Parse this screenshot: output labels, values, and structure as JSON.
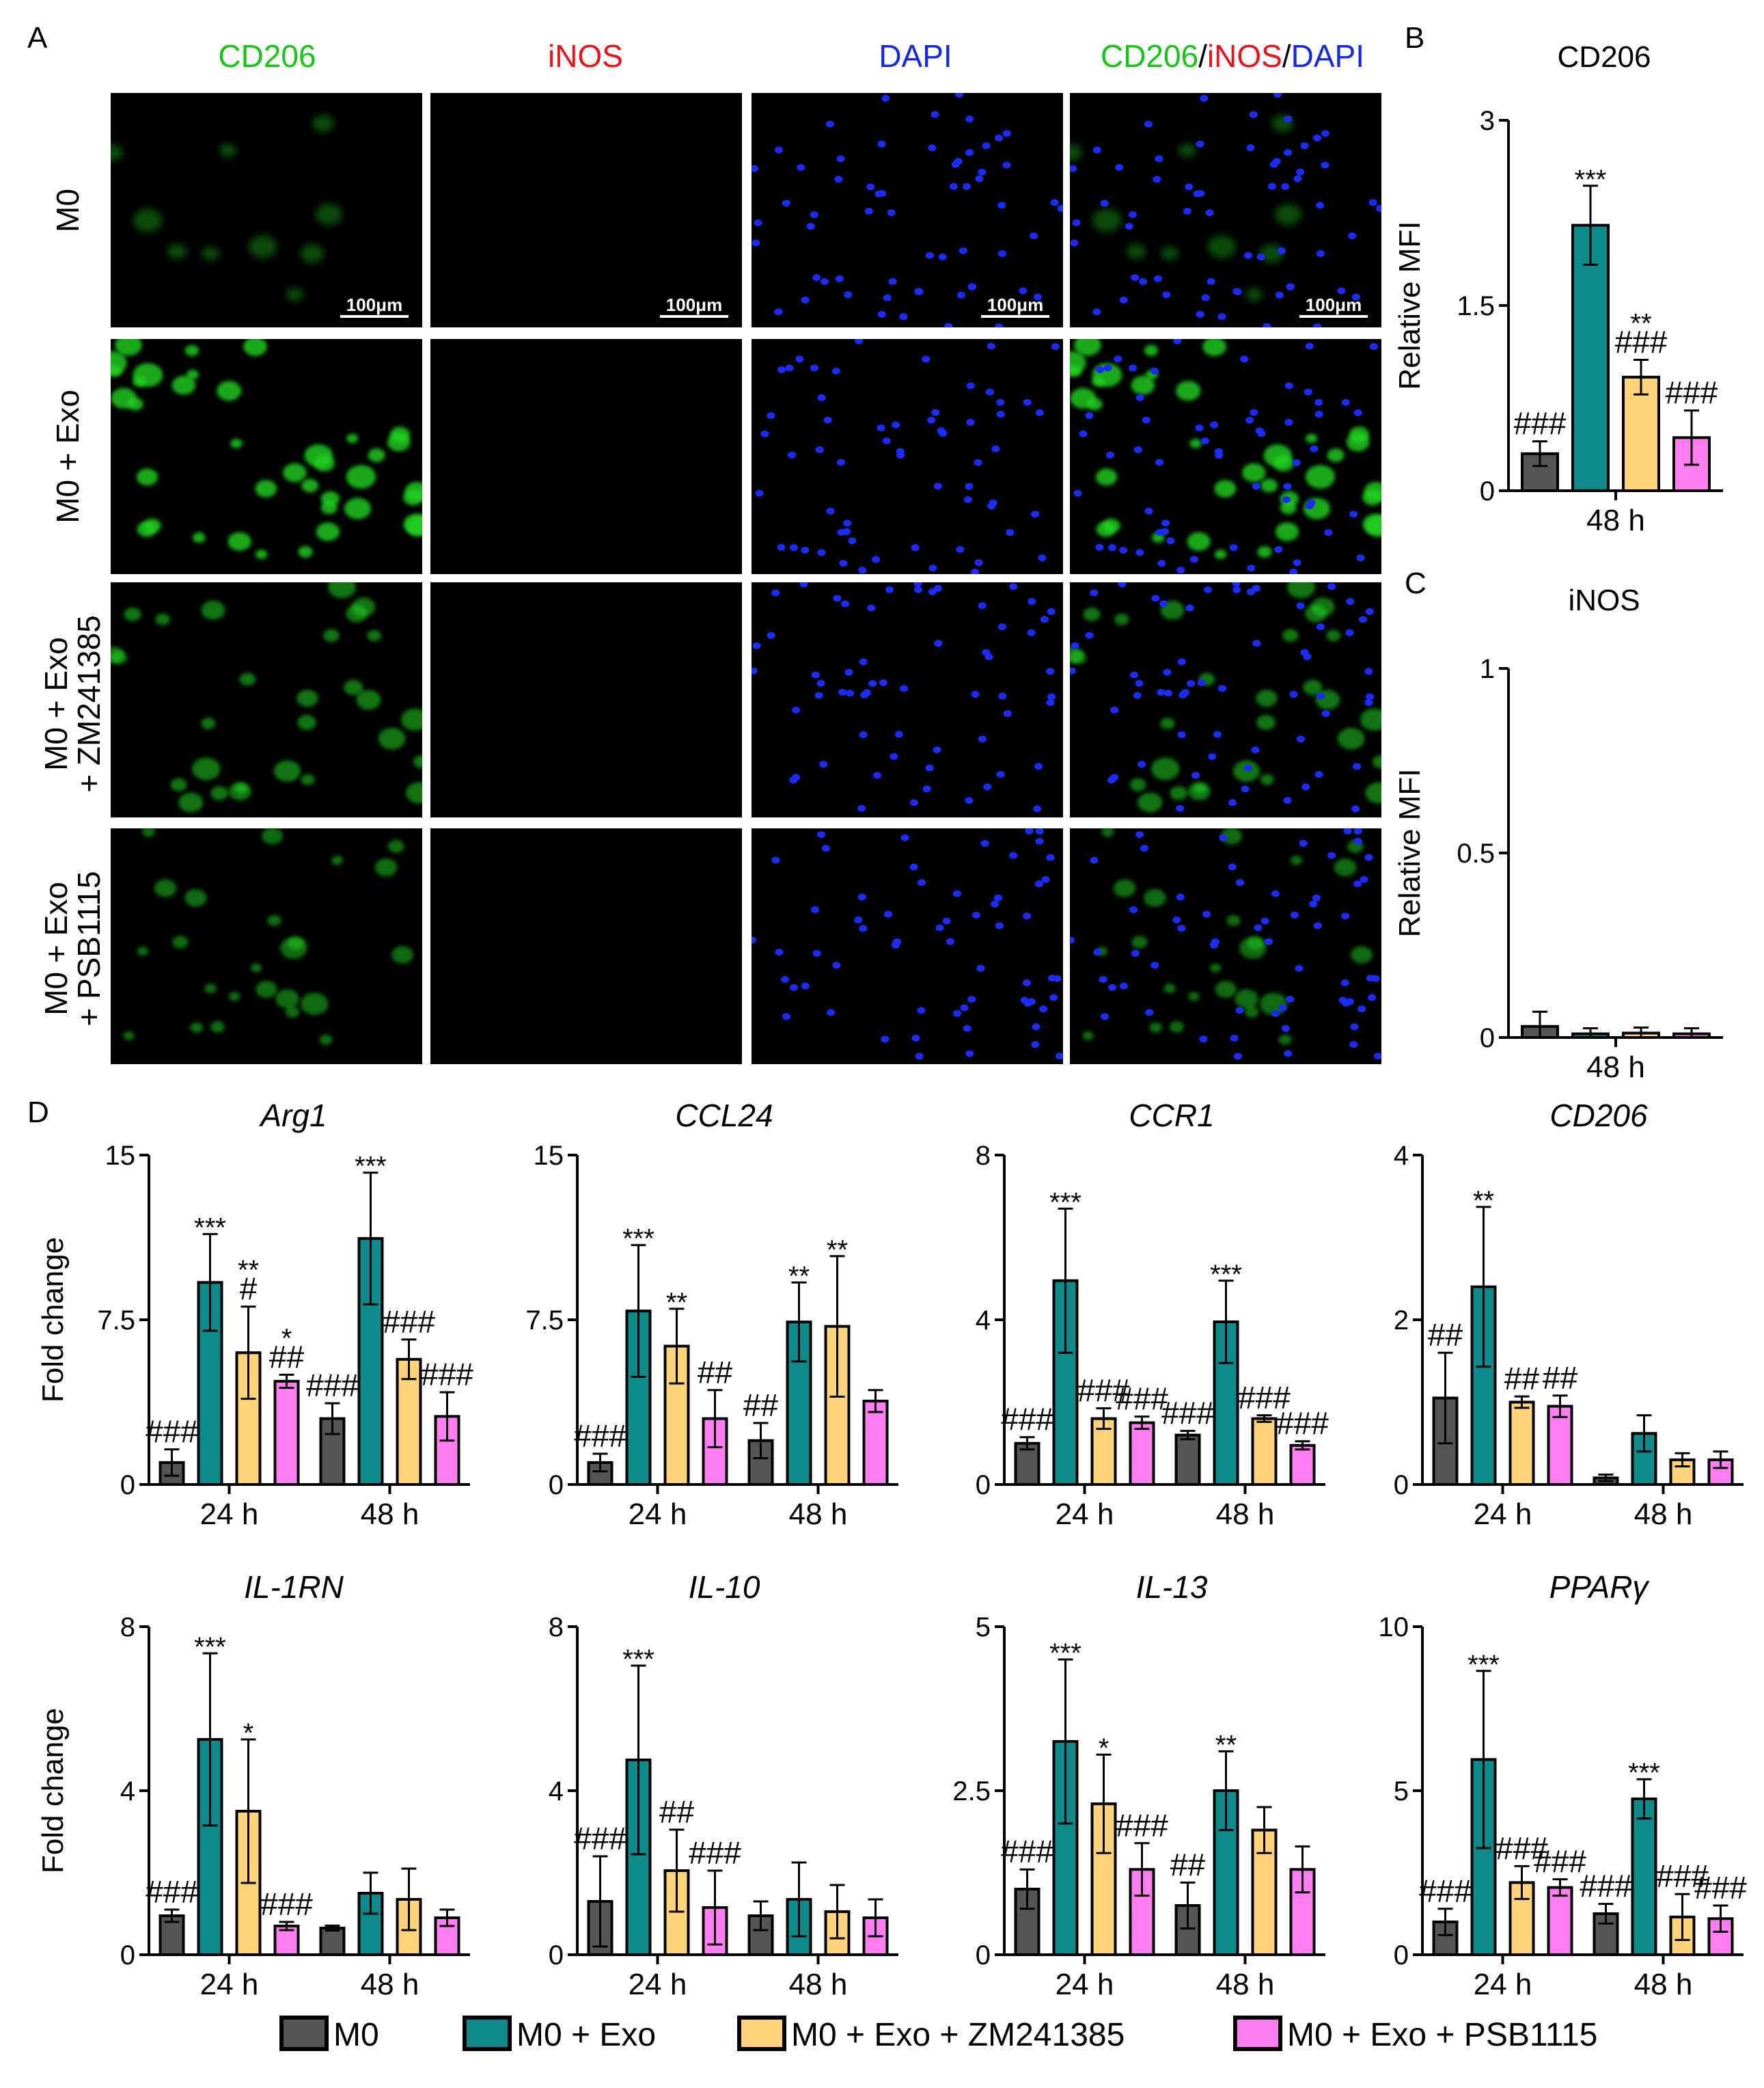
{
  "panel_letters": [
    "A",
    "B",
    "C",
    "D"
  ],
  "colors": {
    "M0": "#555555",
    "M0 + Exo": "#0f8a8a",
    "M0 + Exo + ZM241385": "#ffd37a",
    "M0 + Exo + PSB1115": "#ff7ef0",
    "green_label": "#19c419",
    "red_label": "#e8141c",
    "blue_label": "#1428e0"
  },
  "microscopy": {
    "columns": [
      "CD206",
      "iNOS",
      "DAPI"
    ],
    "merge_label": [
      "CD206",
      "/",
      "iNOS",
      "/",
      "DAPI"
    ],
    "rows": [
      {
        "lines": [
          "M0"
        ]
      },
      {
        "lines": [
          "M0 + Exo"
        ]
      },
      {
        "lines": [
          "M0 + Exo",
          "+ ZM241385"
        ]
      },
      {
        "lines": [
          "M0 + Exo",
          "+ PSB1115"
        ]
      }
    ],
    "scale_bar": "100μm"
  },
  "legend": [
    "M0",
    "M0 + Exo",
    "M0 + Exo + ZM241385",
    "M0 + Exo + PSB1115"
  ],
  "chart_data": [
    {
      "panel": "B",
      "type": "bar",
      "title": "CD206",
      "ylabel": "Relative MFI",
      "categories": [
        "48 h"
      ],
      "ylim": [
        0,
        3
      ],
      "yticks": [
        "0",
        "1.5",
        "3"
      ],
      "series": [
        {
          "name": "M0",
          "values": [
            0.3
          ],
          "err": [
            0.1
          ],
          "marks": [
            [
              "###"
            ]
          ]
        },
        {
          "name": "M0 + Exo",
          "values": [
            2.15
          ],
          "err": [
            0.32
          ],
          "marks": [
            [
              "***"
            ]
          ]
        },
        {
          "name": "M0 + Exo + ZM241385",
          "values": [
            0.92
          ],
          "err": [
            0.14
          ],
          "marks": [
            [
              "**",
              "###"
            ]
          ]
        },
        {
          "name": "M0 + Exo + PSB1115",
          "values": [
            0.43
          ],
          "err": [
            0.22
          ],
          "marks": [
            [
              "###"
            ]
          ]
        }
      ]
    },
    {
      "panel": "C",
      "type": "bar",
      "title": "iNOS",
      "ylabel": "Relative MFI",
      "categories": [
        "48 h"
      ],
      "ylim": [
        0,
        1
      ],
      "yticks": [
        "0",
        "0.5",
        "1"
      ],
      "series": [
        {
          "name": "M0",
          "values": [
            0.03
          ],
          "err": [
            0.04
          ],
          "marks": [
            []
          ]
        },
        {
          "name": "M0 + Exo",
          "values": [
            0.01
          ],
          "err": [
            0.015
          ],
          "marks": [
            []
          ]
        },
        {
          "name": "M0 + Exo + ZM241385",
          "values": [
            0.012
          ],
          "err": [
            0.015
          ],
          "marks": [
            []
          ]
        },
        {
          "name": "M0 + Exo + PSB1115",
          "values": [
            0.01
          ],
          "err": [
            0.015
          ],
          "marks": [
            []
          ]
        }
      ]
    },
    {
      "panel": "D",
      "type": "bar",
      "title": "Arg1",
      "ylabel": "Fold change",
      "categories": [
        "24 h",
        "48 h"
      ],
      "ylim": [
        0,
        15
      ],
      "yticks": [
        "0",
        "7.5",
        "15"
      ],
      "series": [
        {
          "name": "M0",
          "values": [
            1.0,
            3.0
          ],
          "err": [
            0.6,
            0.7
          ],
          "marks": [
            [
              "###"
            ],
            [
              "###"
            ]
          ]
        },
        {
          "name": "M0 + Exo",
          "values": [
            9.2,
            11.2
          ],
          "err": [
            2.2,
            3.0
          ],
          "marks": [
            [
              "***"
            ],
            [
              "***"
            ]
          ]
        },
        {
          "name": "M0 + Exo + ZM241385",
          "values": [
            6.0,
            5.7
          ],
          "err": [
            2.1,
            0.9
          ],
          "marks": [
            [
              "**",
              "#"
            ],
            [
              "###"
            ]
          ]
        },
        {
          "name": "M0 + Exo + PSB1115",
          "values": [
            4.7,
            3.1
          ],
          "err": [
            0.3,
            1.1
          ],
          "marks": [
            [
              "*",
              "##"
            ],
            [
              "###"
            ]
          ]
        }
      ]
    },
    {
      "panel": "D",
      "type": "bar",
      "title": "CCL24",
      "ylabel": "",
      "categories": [
        "24 h",
        "48 h"
      ],
      "ylim": [
        0,
        15
      ],
      "yticks": [
        "0",
        "7.5",
        "15"
      ],
      "series": [
        {
          "name": "M0",
          "values": [
            1.0,
            2.0
          ],
          "err": [
            0.4,
            0.8
          ],
          "marks": [
            [
              "###"
            ],
            [
              "##"
            ]
          ]
        },
        {
          "name": "M0 + Exo",
          "values": [
            7.9,
            7.4
          ],
          "err": [
            3.0,
            1.8
          ],
          "marks": [
            [
              "***"
            ],
            [
              "**"
            ]
          ]
        },
        {
          "name": "M0 + Exo + ZM241385",
          "values": [
            6.3,
            7.2
          ],
          "err": [
            1.7,
            3.2
          ],
          "marks": [
            [
              "**"
            ],
            [
              "**"
            ]
          ]
        },
        {
          "name": "M0 + Exo + PSB1115",
          "values": [
            3.0,
            3.8
          ],
          "err": [
            1.3,
            0.5
          ],
          "marks": [
            [
              "##"
            ],
            []
          ]
        }
      ]
    },
    {
      "panel": "D",
      "type": "bar",
      "title": "CCR1",
      "ylabel": "",
      "categories": [
        "24 h",
        "48 h"
      ],
      "ylim": [
        0,
        8
      ],
      "yticks": [
        "0",
        "4",
        "8"
      ],
      "series": [
        {
          "name": "M0",
          "values": [
            1.0,
            1.2
          ],
          "err": [
            0.15,
            0.1
          ],
          "marks": [
            [
              "###"
            ],
            [
              "###"
            ]
          ]
        },
        {
          "name": "M0 + Exo",
          "values": [
            4.95,
            3.95
          ],
          "err": [
            1.75,
            1.0
          ],
          "marks": [
            [
              "***"
            ],
            [
              "***"
            ]
          ]
        },
        {
          "name": "M0 + Exo + ZM241385",
          "values": [
            1.6,
            1.6
          ],
          "err": [
            0.25,
            0.08
          ],
          "marks": [
            [
              "###"
            ],
            [
              "###"
            ]
          ]
        },
        {
          "name": "M0 + Exo + PSB1115",
          "values": [
            1.5,
            0.95
          ],
          "err": [
            0.15,
            0.1
          ],
          "marks": [
            [
              "###"
            ],
            [
              "###"
            ]
          ]
        }
      ]
    },
    {
      "panel": "D",
      "type": "bar",
      "title": "CD206",
      "ylabel": "",
      "categories": [
        "24 h",
        "48 h"
      ],
      "ylim": [
        0,
        4
      ],
      "yticks": [
        "0",
        "2",
        "4"
      ],
      "series": [
        {
          "name": "M0",
          "values": [
            1.05,
            0.08
          ],
          "err": [
            0.55,
            0.04
          ],
          "marks": [
            [
              "##"
            ],
            []
          ]
        },
        {
          "name": "M0 + Exo",
          "values": [
            2.4,
            0.62
          ],
          "err": [
            0.97,
            0.22
          ],
          "marks": [
            [
              "**"
            ],
            []
          ]
        },
        {
          "name": "M0 + Exo + ZM241385",
          "values": [
            1.0,
            0.3
          ],
          "err": [
            0.07,
            0.08
          ],
          "marks": [
            [
              "##"
            ],
            []
          ]
        },
        {
          "name": "M0 + Exo + PSB1115",
          "values": [
            0.95,
            0.3
          ],
          "err": [
            0.13,
            0.1
          ],
          "marks": [
            [
              "##"
            ],
            []
          ]
        }
      ]
    },
    {
      "panel": "D",
      "type": "bar",
      "title": "IL-1RN",
      "ylabel": "Fold change",
      "categories": [
        "24 h",
        "48 h"
      ],
      "ylim": [
        0,
        8
      ],
      "yticks": [
        "0",
        "4",
        "8"
      ],
      "series": [
        {
          "name": "M0",
          "values": [
            0.95,
            0.65
          ],
          "err": [
            0.15,
            0.06
          ],
          "marks": [
            [
              "###"
            ],
            []
          ]
        },
        {
          "name": "M0 + Exo",
          "values": [
            5.25,
            1.5
          ],
          "err": [
            2.1,
            0.5
          ],
          "marks": [
            [
              "***"
            ],
            []
          ]
        },
        {
          "name": "M0 + Exo + ZM241385",
          "values": [
            3.5,
            1.35
          ],
          "err": [
            1.75,
            0.75
          ],
          "marks": [
            [
              "*"
            ],
            []
          ]
        },
        {
          "name": "M0 + Exo + PSB1115",
          "values": [
            0.7,
            0.9
          ],
          "err": [
            0.1,
            0.2
          ],
          "marks": [
            [
              "###"
            ],
            []
          ]
        }
      ]
    },
    {
      "panel": "D",
      "type": "bar",
      "title": "IL-10",
      "ylabel": "",
      "categories": [
        "24 h",
        "48 h"
      ],
      "ylim": [
        0,
        8
      ],
      "yticks": [
        "0",
        "4",
        "8"
      ],
      "series": [
        {
          "name": "M0",
          "values": [
            1.3,
            0.95
          ],
          "err": [
            1.1,
            0.35
          ],
          "marks": [
            [
              "###"
            ],
            []
          ]
        },
        {
          "name": "M0 + Exo",
          "values": [
            4.75,
            1.35
          ],
          "err": [
            2.3,
            0.9
          ],
          "marks": [
            [
              "***"
            ],
            []
          ]
        },
        {
          "name": "M0 + Exo + ZM241385",
          "values": [
            2.05,
            1.05
          ],
          "err": [
            1.0,
            0.65
          ],
          "marks": [
            [
              "##"
            ],
            []
          ]
        },
        {
          "name": "M0 + Exo + PSB1115",
          "values": [
            1.15,
            0.9
          ],
          "err": [
            0.9,
            0.45
          ],
          "marks": [
            [
              "###"
            ],
            []
          ]
        }
      ]
    },
    {
      "panel": "D",
      "type": "bar",
      "title": "IL-13",
      "ylabel": "",
      "categories": [
        "24 h",
        "48 h"
      ],
      "ylim": [
        0,
        5
      ],
      "yticks": [
        "0",
        "2.5",
        "5"
      ],
      "series": [
        {
          "name": "M0",
          "values": [
            1.0,
            0.75
          ],
          "err": [
            0.3,
            0.35
          ],
          "marks": [
            [
              "###"
            ],
            [
              "##"
            ]
          ]
        },
        {
          "name": "M0 + Exo",
          "values": [
            3.25,
            2.5
          ],
          "err": [
            1.25,
            0.6
          ],
          "marks": [
            [
              "***"
            ],
            [
              "**"
            ]
          ]
        },
        {
          "name": "M0 + Exo + ZM241385",
          "values": [
            2.3,
            1.9
          ],
          "err": [
            0.75,
            0.35
          ],
          "marks": [
            [
              "*"
            ],
            []
          ]
        },
        {
          "name": "M0 + Exo + PSB1115",
          "values": [
            1.3,
            1.3
          ],
          "err": [
            0.4,
            0.35
          ],
          "marks": [
            [
              "###"
            ],
            []
          ]
        }
      ]
    },
    {
      "panel": "D",
      "type": "bar",
      "title": "PPARγ",
      "ylabel": "",
      "categories": [
        "24 h",
        "48 h"
      ],
      "ylim": [
        0,
        10
      ],
      "yticks": [
        "0",
        "5",
        "10"
      ],
      "series": [
        {
          "name": "M0",
          "values": [
            1.0,
            1.25
          ],
          "err": [
            0.4,
            0.3
          ],
          "marks": [
            [
              "###"
            ],
            [
              "###"
            ]
          ]
        },
        {
          "name": "M0 + Exo",
          "values": [
            5.95,
            4.75
          ],
          "err": [
            2.7,
            0.6
          ],
          "marks": [
            [
              "***"
            ],
            [
              "***"
            ]
          ]
        },
        {
          "name": "M0 + Exo + ZM241385",
          "values": [
            2.2,
            1.15
          ],
          "err": [
            0.5,
            0.7
          ],
          "marks": [
            [
              "###"
            ],
            [
              "###"
            ]
          ]
        },
        {
          "name": "M0 + Exo + PSB1115",
          "values": [
            2.05,
            1.1
          ],
          "err": [
            0.25,
            0.4
          ],
          "marks": [
            [
              "###"
            ],
            [
              "###"
            ]
          ]
        }
      ]
    }
  ]
}
